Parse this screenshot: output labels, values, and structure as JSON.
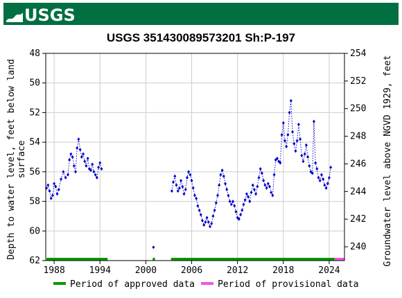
{
  "header": {
    "logo_text": "USGS",
    "bar_color": "#006f41"
  },
  "chart_data": {
    "type": "scatter",
    "title": "USGS 351430089573201 Sh:P-197",
    "ylabel_left_lines": [
      "Depth to water level, feet below land",
      "surface"
    ],
    "ylabel_right": "Groundwater level above NGVD 1929, feet",
    "xlim": [
      1986.9,
      2026.0
    ],
    "ylim_left": [
      62,
      48
    ],
    "ylim_right": [
      239.0,
      254.0
    ],
    "x_ticks": [
      1988,
      1994,
      2000,
      2006,
      2012,
      2018,
      2024
    ],
    "y_ticks_left": [
      48,
      50,
      52,
      54,
      56,
      58,
      60,
      62
    ],
    "y_ticks_right": [
      240,
      242,
      244,
      246,
      248,
      250,
      252,
      254
    ],
    "grid": true,
    "series": [
      {
        "name": "",
        "color": "#0000cc",
        "segments": [
          [
            [
              1987.0,
              57.1
            ],
            [
              1987.2,
              56.9
            ],
            [
              1987.4,
              57.3
            ],
            [
              1987.6,
              57.8
            ],
            [
              1987.8,
              57.6
            ],
            [
              1988.0,
              56.8
            ],
            [
              1988.2,
              57.0
            ],
            [
              1988.4,
              57.5
            ],
            [
              1988.6,
              57.2
            ],
            [
              1988.9,
              56.5
            ],
            [
              1989.2,
              56.0
            ],
            [
              1989.5,
              56.4
            ],
            [
              1989.8,
              56.2
            ],
            [
              1990.0,
              55.2
            ],
            [
              1990.2,
              54.8
            ],
            [
              1990.4,
              55.0
            ],
            [
              1990.6,
              55.6
            ],
            [
              1990.8,
              56.0
            ],
            [
              1991.0,
              54.4
            ],
            [
              1991.2,
              53.8
            ],
            [
              1991.4,
              54.5
            ],
            [
              1991.6,
              55.0
            ],
            [
              1991.8,
              54.8
            ],
            [
              1992.0,
              55.3
            ],
            [
              1992.2,
              55.6
            ],
            [
              1992.4,
              55.1
            ],
            [
              1992.6,
              55.8
            ],
            [
              1992.8,
              55.9
            ],
            [
              1993.0,
              55.5
            ],
            [
              1993.2,
              56.0
            ],
            [
              1993.4,
              56.2
            ],
            [
              1993.6,
              56.4
            ],
            [
              1993.8,
              55.7
            ],
            [
              1994.0,
              55.4
            ],
            [
              1994.2,
              55.8
            ]
          ],
          [
            [
              2001.0,
              61.1
            ]
          ],
          [
            [
              2003.4,
              57.3
            ],
            [
              2003.6,
              56.7
            ],
            [
              2003.8,
              56.3
            ],
            [
              2004.0,
              56.9
            ],
            [
              2004.2,
              57.3
            ],
            [
              2004.4,
              57.1
            ],
            [
              2004.6,
              56.6
            ],
            [
              2004.8,
              57.0
            ],
            [
              2005.0,
              57.5
            ],
            [
              2005.2,
              57.2
            ],
            [
              2005.4,
              56.4
            ],
            [
              2005.6,
              56.0
            ],
            [
              2005.8,
              56.2
            ],
            [
              2006.0,
              56.6
            ],
            [
              2006.2,
              57.1
            ],
            [
              2006.4,
              57.6
            ],
            [
              2006.6,
              57.8
            ],
            [
              2006.8,
              58.3
            ],
            [
              2007.0,
              58.6
            ],
            [
              2007.2,
              58.9
            ],
            [
              2007.4,
              59.3
            ],
            [
              2007.6,
              59.6
            ],
            [
              2007.8,
              59.4
            ],
            [
              2008.0,
              59.1
            ],
            [
              2008.2,
              59.4
            ],
            [
              2008.4,
              59.7
            ],
            [
              2008.6,
              59.5
            ],
            [
              2008.8,
              59.0
            ],
            [
              2009.0,
              58.6
            ],
            [
              2009.2,
              58.1
            ],
            [
              2009.4,
              57.6
            ],
            [
              2009.6,
              56.9
            ],
            [
              2009.8,
              56.2
            ],
            [
              2010.0,
              55.9
            ],
            [
              2010.2,
              56.3
            ],
            [
              2010.4,
              56.8
            ],
            [
              2010.6,
              57.2
            ],
            [
              2010.8,
              57.6
            ],
            [
              2011.0,
              58.0
            ],
            [
              2011.2,
              58.2
            ],
            [
              2011.4,
              58.0
            ],
            [
              2011.6,
              58.3
            ],
            [
              2011.8,
              58.7
            ],
            [
              2012.0,
              59.1
            ],
            [
              2012.2,
              59.2
            ],
            [
              2012.4,
              58.9
            ],
            [
              2012.6,
              58.6
            ],
            [
              2012.8,
              58.2
            ],
            [
              2013.0,
              57.9
            ],
            [
              2013.2,
              57.5
            ],
            [
              2013.4,
              57.7
            ],
            [
              2013.6,
              58.0
            ],
            [
              2013.8,
              57.4
            ],
            [
              2014.0,
              56.9
            ],
            [
              2014.2,
              57.2
            ],
            [
              2014.4,
              57.5
            ],
            [
              2014.6,
              57.0
            ],
            [
              2014.8,
              56.4
            ],
            [
              2015.0,
              55.8
            ],
            [
              2015.2,
              56.1
            ],
            [
              2015.4,
              56.6
            ],
            [
              2015.6,
              56.9
            ],
            [
              2015.8,
              57.1
            ],
            [
              2016.0,
              56.8
            ],
            [
              2016.2,
              57.0
            ],
            [
              2016.4,
              57.4
            ],
            [
              2016.6,
              57.6
            ],
            [
              2016.8,
              56.2
            ],
            [
              2017.0,
              55.2
            ],
            [
              2017.2,
              55.1
            ],
            [
              2017.4,
              55.3
            ],
            [
              2017.6,
              55.4
            ],
            [
              2017.8,
              53.5
            ],
            [
              2018.0,
              52.7
            ],
            [
              2018.2,
              53.9
            ],
            [
              2018.4,
              54.3
            ],
            [
              2018.6,
              53.5
            ],
            [
              2018.8,
              52.0
            ],
            [
              2019.0,
              51.2
            ],
            [
              2019.2,
              53.3
            ],
            [
              2019.4,
              54.1
            ],
            [
              2019.6,
              54.6
            ],
            [
              2019.8,
              53.9
            ],
            [
              2020.0,
              52.8
            ],
            [
              2020.2,
              53.8
            ],
            [
              2020.4,
              54.9
            ],
            [
              2020.6,
              55.3
            ],
            [
              2020.8,
              54.8
            ],
            [
              2021.0,
              54.2
            ],
            [
              2021.2,
              55.0
            ],
            [
              2021.4,
              55.6
            ],
            [
              2021.6,
              56.0
            ],
            [
              2021.8,
              56.1
            ],
            [
              2022.0,
              52.6
            ],
            [
              2022.2,
              55.4
            ],
            [
              2022.4,
              55.8
            ],
            [
              2022.6,
              56.4
            ],
            [
              2022.8,
              56.6
            ],
            [
              2023.0,
              56.2
            ],
            [
              2023.2,
              56.5
            ],
            [
              2023.4,
              56.9
            ],
            [
              2023.6,
              57.1
            ],
            [
              2023.8,
              56.8
            ],
            [
              2024.0,
              56.4
            ],
            [
              2024.2,
              55.7
            ]
          ]
        ]
      }
    ],
    "approved_periods": [
      [
        1987.0,
        1995.0
      ],
      [
        2000.9,
        2001.2
      ],
      [
        2003.3,
        2024.7
      ]
    ],
    "provisional_periods": [
      [
        2024.7,
        2026.0
      ]
    ],
    "approved_color": "#009900",
    "provisional_color": "#ee55ee",
    "legend": {
      "placement": "bottom",
      "items": [
        {
          "label": "Period of approved data",
          "color": "#009900"
        },
        {
          "label": "Period of provisional data",
          "color": "#ee55ee"
        }
      ]
    }
  }
}
